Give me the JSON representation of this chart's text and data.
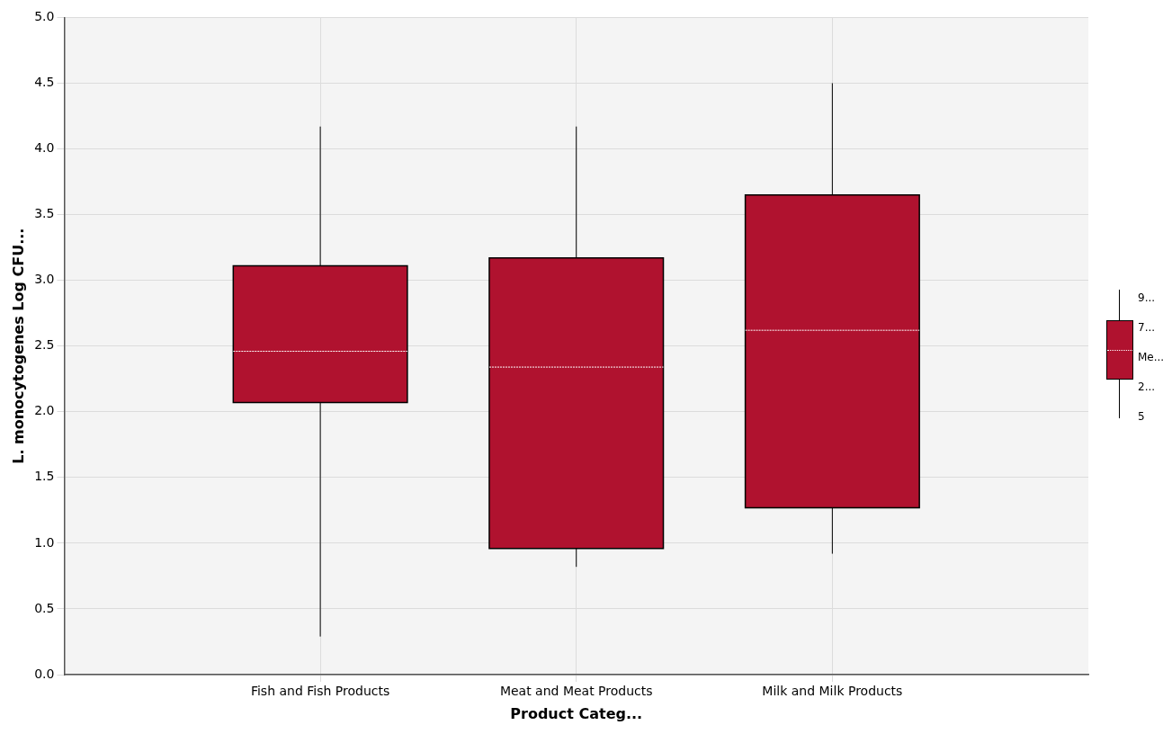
{
  "chart_data": {
    "type": "box",
    "xlabel": "Product Categ...",
    "ylabel": "L. monocytogenes Log CFU...",
    "categories": [
      "Fish and Fish Products",
      "Meat and Meat Products",
      "Milk and Milk Products"
    ],
    "color": "#b0122f",
    "boxes": [
      {
        "low": 0.29,
        "q1": 2.07,
        "median": 2.46,
        "q3": 3.11,
        "high": 4.17
      },
      {
        "low": 0.82,
        "q1": 0.96,
        "median": 2.34,
        "q3": 3.17,
        "high": 4.17
      },
      {
        "low": 0.92,
        "q1": 1.27,
        "median": 2.62,
        "q3": 3.65,
        "high": 4.5
      }
    ],
    "ylim": [
      0,
      5
    ],
    "yticks": [
      {
        "value": 0,
        "label": "0.0"
      },
      {
        "value": 0.5,
        "label": "0.5"
      },
      {
        "value": 1,
        "label": "1.0"
      },
      {
        "value": 1.5,
        "label": "1.5"
      },
      {
        "value": 2,
        "label": "2.0"
      },
      {
        "value": 2.5,
        "label": "2.5"
      },
      {
        "value": 3,
        "label": "3.0"
      },
      {
        "value": 3.5,
        "label": "3.5"
      },
      {
        "value": 4,
        "label": "4.0"
      },
      {
        "value": 4.5,
        "label": "4.5"
      },
      {
        "value": 5,
        "label": "5.0"
      }
    ],
    "grid": true,
    "annotations": [
      "9...",
      "7...",
      "Me...",
      "2...",
      "5"
    ]
  }
}
